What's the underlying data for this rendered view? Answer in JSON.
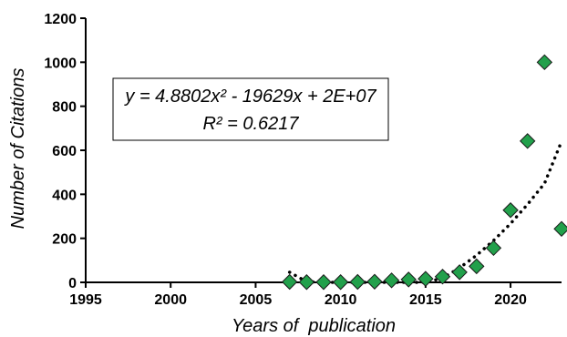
{
  "chart_data": {
    "type": "scatter",
    "title": "",
    "xlabel": "Years of  publication",
    "ylabel": "Number of Citations",
    "xlim": [
      1995,
      2023
    ],
    "ylim": [
      0,
      1200
    ],
    "xticks": [
      1995,
      2000,
      2005,
      2010,
      2015,
      2020
    ],
    "yticks": [
      0,
      200,
      400,
      600,
      800,
      1000,
      1200
    ],
    "grid": false,
    "legend": "none",
    "marker": "diamond",
    "marker_color": "#22a04b",
    "series": [
      {
        "x": [
          2007,
          2008,
          2009,
          2010,
          2011,
          2012,
          2013,
          2014,
          2015,
          2016,
          2017,
          2018,
          2019,
          2020,
          2021,
          2022,
          2023
        ],
        "y": [
          2,
          1,
          1,
          1,
          2,
          3,
          9,
          13,
          16,
          26,
          46,
          73,
          156,
          328,
          642,
          1000,
          243
        ]
      }
    ],
    "trendline": {
      "type": "polynomial-2",
      "style": "dotted",
      "equation": "y = 4.8802x² - 19629x + 2E+07",
      "r_squared": "R² = 0.6217",
      "points_x": [
        2007,
        2008,
        2009,
        2010,
        2011,
        2012,
        2013,
        2014,
        2015,
        2016,
        2017,
        2018,
        2019,
        2020,
        2021,
        2022,
        2023
      ],
      "points_y": [
        46,
        3,
        -30,
        -53,
        -66,
        -69,
        -62,
        -45,
        -18,
        19,
        66,
        123,
        190,
        267,
        354,
        450,
        640
      ]
    }
  }
}
